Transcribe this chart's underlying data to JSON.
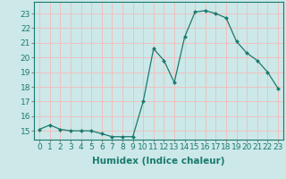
{
  "x": [
    0,
    1,
    2,
    3,
    4,
    5,
    6,
    7,
    8,
    9,
    10,
    11,
    12,
    13,
    14,
    15,
    16,
    17,
    18,
    19,
    20,
    21,
    22,
    23
  ],
  "y": [
    15.1,
    15.4,
    15.1,
    15.0,
    15.0,
    15.0,
    14.8,
    14.6,
    14.6,
    14.6,
    17.0,
    20.6,
    19.8,
    18.3,
    21.4,
    23.1,
    23.2,
    23.0,
    22.7,
    21.1,
    20.3,
    19.8,
    19.0,
    17.9
  ],
  "line_color": "#1a7a6e",
  "marker": "D",
  "marker_size": 2.0,
  "bg_color": "#cce8e8",
  "grid_color": "#f0c0c0",
  "xlabel": "Humidex (Indice chaleur)",
  "ylabel": "",
  "xlim": [
    -0.5,
    23.5
  ],
  "ylim": [
    14.4,
    23.8
  ],
  "yticks": [
    15,
    16,
    17,
    18,
    19,
    20,
    21,
    22,
    23
  ],
  "xticks": [
    0,
    1,
    2,
    3,
    4,
    5,
    6,
    7,
    8,
    9,
    10,
    11,
    12,
    13,
    14,
    15,
    16,
    17,
    18,
    19,
    20,
    21,
    22,
    23
  ],
  "tick_label_fontsize": 6.5,
  "xlabel_fontsize": 7.5
}
